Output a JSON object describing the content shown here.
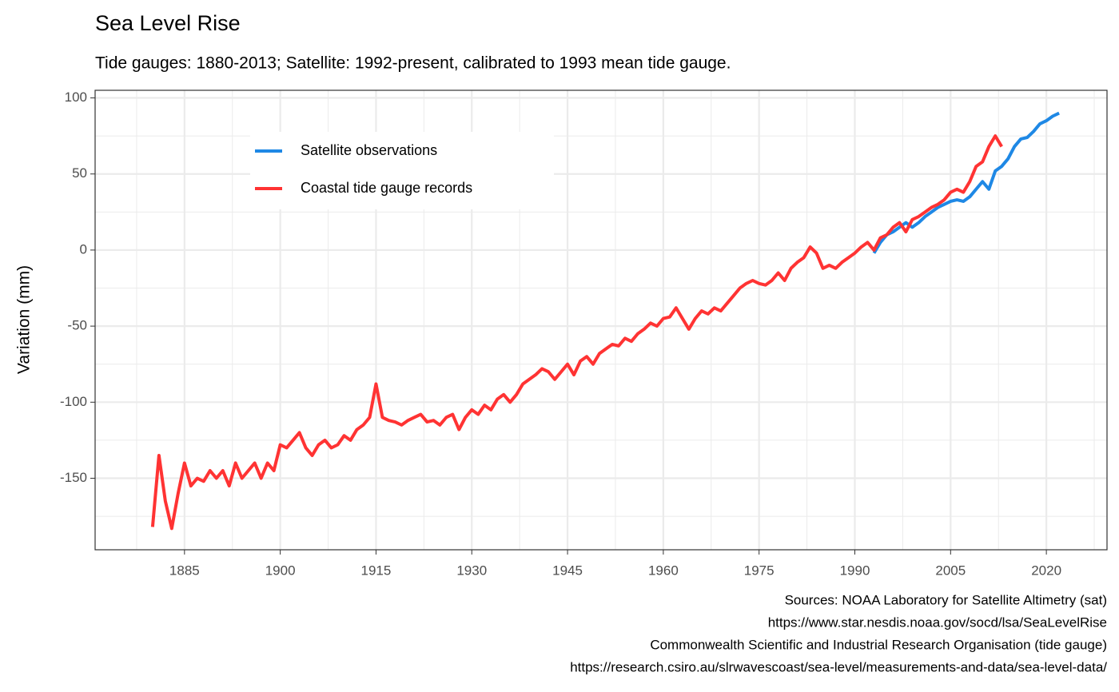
{
  "chart_data": {
    "type": "line",
    "title": "Sea Level Rise",
    "subtitle": "Tide gauges: 1880-2013; Satellite: 1992-present, calibrated to 1993 mean tide gauge.",
    "y_label": "Variation (mm)",
    "caption": [
      "Sources: NOAA Laboratory for Satellite Altimetry (sat)",
      "https://www.star.nesdis.noaa.gov/socd/lsa/SeaLevelRise",
      "Commonwealth Scientific and Industrial Research Organisation (tide gauge)",
      "https://research.csiro.au/slrwavescoast/sea-level/measurements-and-data/sea-level-data/"
    ],
    "xlim": [
      1871,
      2029.5
    ],
    "xticks": [
      1885,
      1900,
      1915,
      1930,
      1945,
      1960,
      1975,
      1990,
      2005,
      2020
    ],
    "xminor": [
      1877.5,
      1892.5,
      1907.5,
      1922.5,
      1937.5,
      1952.5,
      1967.5,
      1982.5,
      1997.5,
      2012.5,
      2027.5
    ],
    "ylim": [
      -197,
      105
    ],
    "yticks": [
      -150,
      -100,
      -50,
      0,
      50,
      100
    ],
    "yminor": [
      -175,
      -125,
      -75,
      -25,
      25,
      75
    ],
    "grid": true,
    "legend_position": "top-left",
    "series": [
      {
        "name": "Satellite observations",
        "color": "#1e88e5",
        "x": [
          1993,
          1994,
          1995,
          1996,
          1997,
          1998,
          1999,
          2000,
          2001,
          2002,
          2003,
          2004,
          2005,
          2006,
          2007,
          2008,
          2009,
          2010,
          2011,
          2012,
          2013,
          2014,
          2015,
          2016,
          2017,
          2018,
          2019,
          2020,
          2021,
          2022
        ],
        "values": [
          -2,
          5,
          10,
          12,
          15,
          18,
          15,
          18,
          22,
          25,
          28,
          30,
          32,
          33,
          32,
          35,
          40,
          45,
          40,
          52,
          55,
          60,
          68,
          73,
          74,
          78,
          83,
          85,
          88,
          90
        ]
      },
      {
        "name": "Coastal tide gauge records",
        "color": "#ff3333",
        "x": [
          1880,
          1881,
          1882,
          1883,
          1884,
          1885,
          1886,
          1887,
          1888,
          1889,
          1890,
          1891,
          1892,
          1893,
          1894,
          1895,
          1896,
          1897,
          1898,
          1899,
          1900,
          1901,
          1902,
          1903,
          1904,
          1905,
          1906,
          1907,
          1908,
          1909,
          1910,
          1911,
          1912,
          1913,
          1914,
          1915,
          1916,
          1917,
          1918,
          1919,
          1920,
          1921,
          1922,
          1923,
          1924,
          1925,
          1926,
          1927,
          1928,
          1929,
          1930,
          1931,
          1932,
          1933,
          1934,
          1935,
          1936,
          1937,
          1938,
          1939,
          1940,
          1941,
          1942,
          1943,
          1944,
          1945,
          1946,
          1947,
          1948,
          1949,
          1950,
          1951,
          1952,
          1953,
          1954,
          1955,
          1956,
          1957,
          1958,
          1959,
          1960,
          1961,
          1962,
          1963,
          1964,
          1965,
          1966,
          1967,
          1968,
          1969,
          1970,
          1971,
          1972,
          1973,
          1974,
          1975,
          1976,
          1977,
          1978,
          1979,
          1980,
          1981,
          1982,
          1983,
          1984,
          1985,
          1986,
          1987,
          1988,
          1989,
          1990,
          1991,
          1992,
          1993,
          1994,
          1995,
          1996,
          1997,
          1998,
          1999,
          2000,
          2001,
          2002,
          2003,
          2004,
          2005,
          2006,
          2007,
          2008,
          2009,
          2010,
          2011,
          2012,
          2013
        ],
        "values": [
          -182,
          -135,
          -165,
          -183,
          -160,
          -140,
          -155,
          -150,
          -152,
          -145,
          -150,
          -145,
          -155,
          -140,
          -150,
          -145,
          -140,
          -150,
          -140,
          -145,
          -128,
          -130,
          -125,
          -120,
          -130,
          -135,
          -128,
          -125,
          -130,
          -128,
          -122,
          -125,
          -118,
          -115,
          -110,
          -88,
          -110,
          -112,
          -113,
          -115,
          -112,
          -110,
          -108,
          -113,
          -112,
          -115,
          -110,
          -108,
          -118,
          -110,
          -105,
          -108,
          -102,
          -105,
          -98,
          -95,
          -100,
          -95,
          -88,
          -85,
          -82,
          -78,
          -80,
          -85,
          -80,
          -75,
          -82,
          -73,
          -70,
          -75,
          -68,
          -65,
          -62,
          -63,
          -58,
          -60,
          -55,
          -52,
          -48,
          -50,
          -45,
          -44,
          -38,
          -45,
          -52,
          -45,
          -40,
          -42,
          -38,
          -40,
          -35,
          -30,
          -25,
          -22,
          -20,
          -22,
          -23,
          -20,
          -15,
          -20,
          -12,
          -8,
          -5,
          2,
          -2,
          -12,
          -10,
          -12,
          -8,
          -5,
          -2,
          2,
          5,
          0,
          8,
          10,
          15,
          18,
          12,
          20,
          22,
          25,
          28,
          30,
          33,
          38,
          40,
          38,
          45,
          55,
          58,
          68,
          75,
          68
        ]
      }
    ]
  }
}
